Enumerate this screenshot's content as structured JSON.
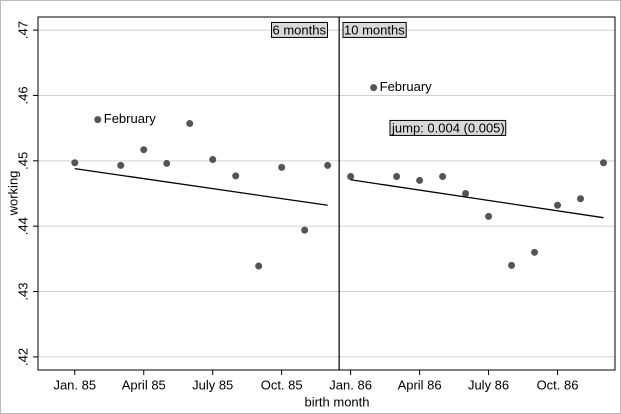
{
  "chart_data": {
    "type": "scatter",
    "xlabel": "birth month",
    "ylabel": "working",
    "xlim": [
      -1.6,
      23.5
    ],
    "ylim": [
      0.418,
      0.472
    ],
    "xticks": [
      {
        "value": 0,
        "label": "Jan. 85"
      },
      {
        "value": 3,
        "label": "April 85"
      },
      {
        "value": 6,
        "label": "July 85"
      },
      {
        "value": 9,
        "label": "Oct. 85"
      },
      {
        "value": 12,
        "label": "Jan. 86"
      },
      {
        "value": 15,
        "label": "April 86"
      },
      {
        "value": 18,
        "label": "July 86"
      },
      {
        "value": 21,
        "label": "Oct. 86"
      }
    ],
    "yticks": [
      {
        "value": 0.42,
        "label": ".42"
      },
      {
        "value": 0.43,
        "label": ".43"
      },
      {
        "value": 0.44,
        "label": ".44"
      },
      {
        "value": 0.45,
        "label": ".45"
      },
      {
        "value": 0.46,
        "label": ".46"
      },
      {
        "value": 0.47,
        "label": ".47"
      }
    ],
    "grid": true,
    "cutoff": 11.5,
    "point_color": "#555555",
    "fit_color": "#000000",
    "segments": [
      {
        "x": [
          0,
          1,
          2,
          3,
          4,
          5,
          6,
          7,
          8,
          9,
          10,
          11
        ],
        "values": [
          0.4497,
          0.4563,
          0.4493,
          0.4517,
          0.4496,
          0.4557,
          0.4502,
          0.4477,
          0.4339,
          0.449,
          0.4394,
          0.4493
        ],
        "labels": [
          null,
          "February",
          null,
          null,
          null,
          null,
          null,
          null,
          null,
          null,
          null,
          null
        ],
        "fit_x": [
          0,
          11
        ],
        "fit_values": [
          0.4488,
          0.4432
        ]
      },
      {
        "x": [
          12,
          13,
          14,
          15,
          16,
          17,
          18,
          19,
          20,
          21,
          22,
          23
        ],
        "values": [
          0.4476,
          0.4612,
          0.4476,
          0.447,
          0.4476,
          0.445,
          0.4415,
          0.434,
          0.436,
          0.4432,
          0.4442,
          0.4497
        ],
        "labels": [
          null,
          "February",
          null,
          null,
          null,
          null,
          null,
          null,
          null,
          null,
          null,
          null
        ],
        "fit_x": [
          12,
          23
        ],
        "fit_values": [
          0.4471,
          0.4413
        ]
      }
    ],
    "annotations": [
      "6 months",
      "10 months",
      "jump: 0.004 (0.005)"
    ]
  }
}
